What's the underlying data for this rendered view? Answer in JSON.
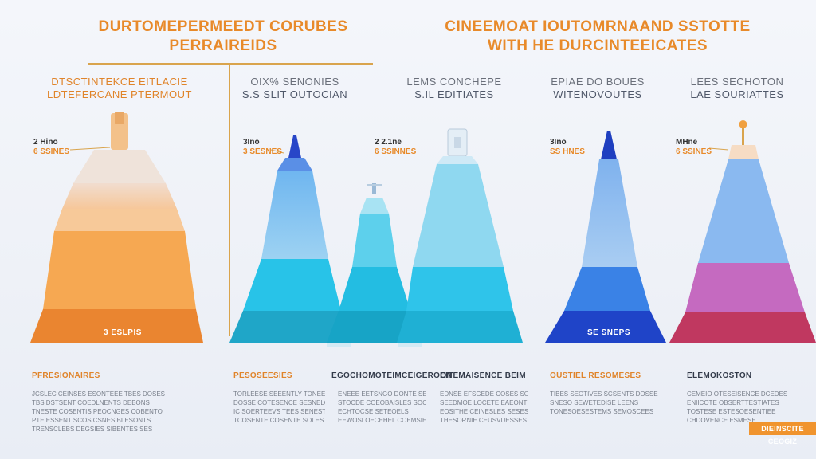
{
  "header": {
    "left_line1": "DURTOMEPERMEEDT CORUBES",
    "left_line2": "PERRAIREIDS",
    "right_line1": "CINEEMOAT IOUTOMRNAAND SSTOTTE",
    "right_line2": "WITH HE  DURCINTEEICATES"
  },
  "colors": {
    "orange": "#e88a2a",
    "gold_line": "#d9a44d",
    "cyan": "#2bbde0",
    "blue": "#2a55d0",
    "magenta": "#c04a7a"
  },
  "subheads": [
    {
      "a": "DTSCTINTEKCE EITLACIE",
      "b": "LDTEFERCANE PTERMOUT"
    },
    {
      "a": "OIX% SENONIES",
      "b": "S.S SLIT OUTOCIAN"
    },
    {
      "a": "LEMS CONCHEPE",
      "b": "S.IL  EDITIATES"
    },
    {
      "a": "EPIAE DO BOUES",
      "b": "WITENOVOUTES"
    },
    {
      "a": "LEES SECHOTON",
      "b": "LAE SOURIATTES"
    }
  ],
  "value_labels": [
    {
      "v1": "2 Hino",
      "v2": "6 SSINES"
    },
    {
      "v1": "3Ino",
      "v2": "3 SESNES"
    },
    {
      "v1": "2 2.1ne",
      "v2": "6 SSINNES"
    },
    {
      "v1": "3Ino",
      "v2": "SS HNES"
    },
    {
      "v1": "MHne",
      "v2": "6 SSINES"
    }
  ],
  "inside_labels": [
    "3 ESLPIS",
    "SE SNEPS"
  ],
  "columns": [
    {
      "head": "PFRESIONAIRES",
      "lines": [
        "JCSLEC CEINSES ESONTEEE TBES DOSES",
        "TBS DSTSENT COEDLNENTS DEBONS",
        "TNESTE COSENTIS PEOCNGES COBENTO",
        "PTE ESSENT SCOS CSNES BLESONTS",
        "TRENSCLEBS DEGSIES SIBENTES SES"
      ]
    },
    {
      "head": "PESOSEESIES",
      "lines": [
        "TORLEESE SEEENTLY TONEES SELE",
        "DOSSE COTESENCE SESNELOIS",
        "IC SOERTEEVS TEES SENESTS",
        "TCOSENTE COSENTE SOLESTE"
      ]
    },
    {
      "head": "EGOCHOMOTEIMCEIGEROON",
      "lines": [
        "ENEEE EETSNGO DONTE SETESE",
        "STOCDE COEOBAISLES SOCKSE",
        "ECHTOCSE SETEOELS",
        "EEWOSLOECEHEL COEMSIES"
      ]
    },
    {
      "head": "EITEMAISENCE BEIM",
      "lines": [
        "EDNSE EFSGEDE COSES SOLE",
        "SEEDMOE LOCETE EAEONTED",
        "EOSITHE CEINESLES SESES",
        "THESORNIE CEUSVUESSES"
      ]
    },
    {
      "head": "OUSTIEL RESOMESES",
      "lines": [
        "TIBES SEOTIVES SCSENTS DOSSE",
        "SNESO SEWETEDISE LEENS",
        "TONESOESESTEMS SEMOSCEES"
      ]
    },
    {
      "head": "ELEMOKOSTON",
      "lines": [
        "CEMEIO OTESEISENCE DCEDES",
        "ENIICOTE OBSERTTESTIATES",
        "TOSTESE ESTESOESENTIEE",
        "CHDOVENCE ESMESE"
      ]
    }
  ],
  "badge": "DIEINSCITE CEOGIZ"
}
